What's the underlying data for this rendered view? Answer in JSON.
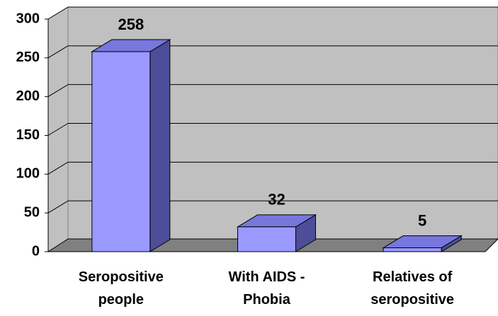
{
  "chart_data": {
    "type": "bar3d",
    "categories": [
      "Seropositive people",
      "With AIDS - Phobia",
      "Relatives of seropositive"
    ],
    "values": [
      258,
      32,
      5
    ],
    "color": "#9999ff",
    "ylim": [
      0,
      300
    ],
    "yticks": [
      0,
      50,
      100,
      150,
      200,
      250,
      300
    ],
    "grid": true
  }
}
